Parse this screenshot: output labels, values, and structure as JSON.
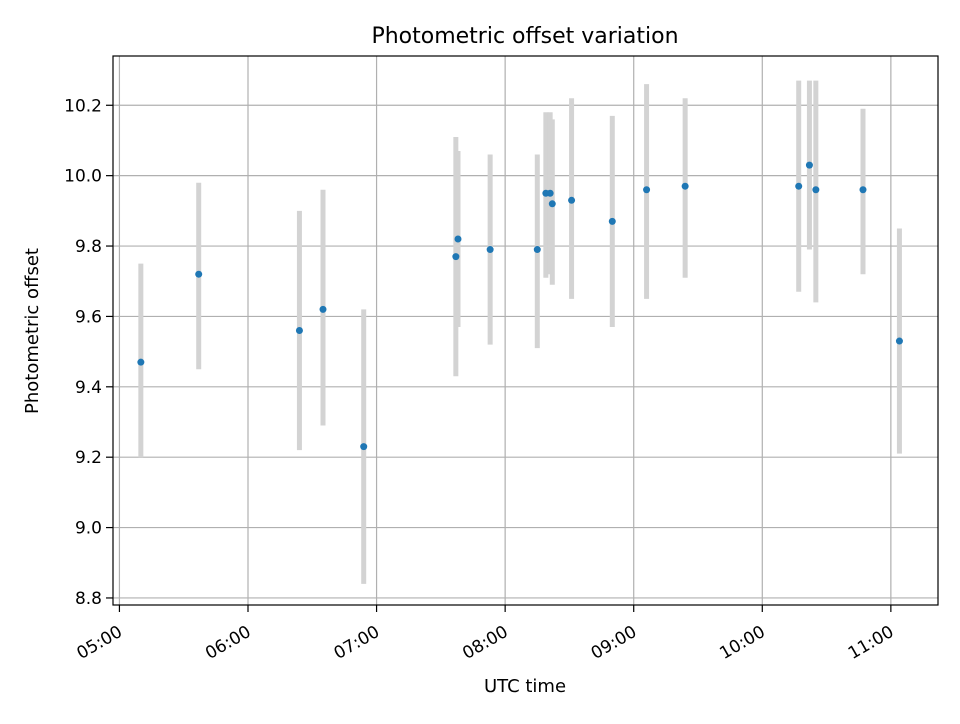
{
  "chart_data": {
    "type": "scatter",
    "title": "Photometric offset variation",
    "xlabel": "UTC time",
    "ylabel": "Photometric offset",
    "x_axis_type": "time",
    "xlim": [
      "04:57",
      "11:22"
    ],
    "ylim": [
      8.78,
      10.34
    ],
    "x_ticks": [
      "05:00",
      "06:00",
      "07:00",
      "08:00",
      "09:00",
      "10:00",
      "11:00"
    ],
    "y_ticks": [
      8.8,
      9.0,
      9.2,
      9.4,
      9.6,
      9.8,
      10.0,
      10.2
    ],
    "y_tick_labels": [
      "8.8",
      "9.0",
      "9.2",
      "9.4",
      "9.6",
      "9.8",
      "10.0",
      "10.2"
    ],
    "grid": true,
    "legend": "none",
    "colors": {
      "point": "#1f77b4",
      "errorbar": "#d3d3d3",
      "grid": "#b0b0b0",
      "axes": "#000000"
    },
    "points": [
      {
        "x": "05:10",
        "y": 9.47,
        "ylow": 9.2,
        "yhigh": 9.75
      },
      {
        "x": "05:37",
        "y": 9.72,
        "ylow": 9.45,
        "yhigh": 9.98
      },
      {
        "x": "06:24",
        "y": 9.56,
        "ylow": 9.22,
        "yhigh": 9.9
      },
      {
        "x": "06:35",
        "y": 9.62,
        "ylow": 9.29,
        "yhigh": 9.96
      },
      {
        "x": "06:54",
        "y": 9.23,
        "ylow": 8.84,
        "yhigh": 9.62
      },
      {
        "x": "07:37",
        "y": 9.77,
        "ylow": 9.43,
        "yhigh": 10.11
      },
      {
        "x": "07:38",
        "y": 9.82,
        "ylow": 9.57,
        "yhigh": 10.07
      },
      {
        "x": "07:53",
        "y": 9.79,
        "ylow": 9.52,
        "yhigh": 10.06
      },
      {
        "x": "08:15",
        "y": 9.79,
        "ylow": 9.51,
        "yhigh": 10.06
      },
      {
        "x": "08:19",
        "y": 9.95,
        "ylow": 9.71,
        "yhigh": 10.18
      },
      {
        "x": "08:21",
        "y": 9.95,
        "ylow": 9.72,
        "yhigh": 10.18
      },
      {
        "x": "08:22",
        "y": 9.92,
        "ylow": 9.69,
        "yhigh": 10.16
      },
      {
        "x": "08:31",
        "y": 9.93,
        "ylow": 9.65,
        "yhigh": 10.22
      },
      {
        "x": "08:50",
        "y": 9.87,
        "ylow": 9.57,
        "yhigh": 10.17
      },
      {
        "x": "09:06",
        "y": 9.96,
        "ylow": 9.65,
        "yhigh": 10.26
      },
      {
        "x": "09:24",
        "y": 9.97,
        "ylow": 9.71,
        "yhigh": 10.22
      },
      {
        "x": "10:17",
        "y": 9.97,
        "ylow": 9.67,
        "yhigh": 10.27
      },
      {
        "x": "10:22",
        "y": 10.03,
        "ylow": 9.79,
        "yhigh": 10.27
      },
      {
        "x": "10:25",
        "y": 9.96,
        "ylow": 9.64,
        "yhigh": 10.27
      },
      {
        "x": "10:47",
        "y": 9.96,
        "ylow": 9.72,
        "yhigh": 10.19
      },
      {
        "x": "11:04",
        "y": 9.53,
        "ylow": 9.21,
        "yhigh": 9.85
      }
    ]
  }
}
